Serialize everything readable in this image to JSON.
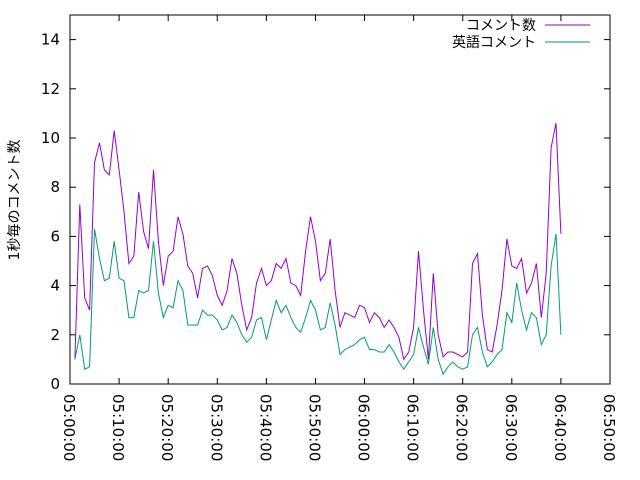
{
  "chart_data": {
    "type": "line",
    "ylabel": "1秒毎のコメント数",
    "xlabel": "",
    "title": "",
    "ylim": [
      0,
      15
    ],
    "yticks": [
      0,
      2,
      4,
      6,
      8,
      10,
      12,
      14
    ],
    "xlim": [
      "05:00:00",
      "06:50:00"
    ],
    "xticks": [
      "05:00:00",
      "05:10:00",
      "05:20:00",
      "05:30:00",
      "05:40:00",
      "05:50:00",
      "06:00:00",
      "06:10:00",
      "06:20:00",
      "06:30:00",
      "06:40:00",
      "06:50:00"
    ],
    "legend_position": "top-right",
    "grid": false,
    "series": [
      {
        "name": "コメント数",
        "color": "#9400d3",
        "points": [
          [
            "05:01:00",
            1.0
          ],
          [
            "05:02:00",
            7.3
          ],
          [
            "05:03:00",
            3.5
          ],
          [
            "05:04:00",
            3.0
          ],
          [
            "05:05:00",
            9.0
          ],
          [
            "05:06:00",
            9.8
          ],
          [
            "05:07:00",
            8.7
          ],
          [
            "05:08:00",
            8.5
          ],
          [
            "05:09:00",
            10.3
          ],
          [
            "05:10:00",
            8.7
          ],
          [
            "05:11:00",
            7.0
          ],
          [
            "05:12:00",
            4.9
          ],
          [
            "05:13:00",
            5.2
          ],
          [
            "05:14:00",
            7.8
          ],
          [
            "05:15:00",
            6.2
          ],
          [
            "05:16:00",
            5.5
          ],
          [
            "05:17:00",
            8.7
          ],
          [
            "05:18:00",
            5.8
          ],
          [
            "05:19:00",
            4.0
          ],
          [
            "05:20:00",
            5.2
          ],
          [
            "05:21:00",
            5.4
          ],
          [
            "05:22:00",
            6.8
          ],
          [
            "05:23:00",
            6.1
          ],
          [
            "05:24:00",
            4.8
          ],
          [
            "05:25:00",
            4.5
          ],
          [
            "05:26:00",
            3.5
          ],
          [
            "05:27:00",
            4.7
          ],
          [
            "05:28:00",
            4.8
          ],
          [
            "05:29:00",
            4.4
          ],
          [
            "05:30:00",
            3.6
          ],
          [
            "05:31:00",
            3.2
          ],
          [
            "05:32:00",
            3.8
          ],
          [
            "05:33:00",
            5.1
          ],
          [
            "05:34:00",
            4.5
          ],
          [
            "05:35:00",
            3.2
          ],
          [
            "05:36:00",
            2.2
          ],
          [
            "05:37:00",
            2.7
          ],
          [
            "05:38:00",
            4.1
          ],
          [
            "05:39:00",
            4.7
          ],
          [
            "05:40:00",
            4.0
          ],
          [
            "05:41:00",
            4.2
          ],
          [
            "05:42:00",
            4.9
          ],
          [
            "05:43:00",
            4.7
          ],
          [
            "05:44:00",
            5.1
          ],
          [
            "05:45:00",
            4.1
          ],
          [
            "05:46:00",
            4.0
          ],
          [
            "05:47:00",
            3.6
          ],
          [
            "05:48:00",
            5.4
          ],
          [
            "05:49:00",
            6.8
          ],
          [
            "05:50:00",
            5.8
          ],
          [
            "05:51:00",
            4.2
          ],
          [
            "05:52:00",
            4.5
          ],
          [
            "05:53:00",
            5.9
          ],
          [
            "05:54:00",
            3.8
          ],
          [
            "05:55:00",
            2.3
          ],
          [
            "05:56:00",
            2.9
          ],
          [
            "05:57:00",
            2.8
          ],
          [
            "05:58:00",
            2.7
          ],
          [
            "05:59:00",
            3.2
          ],
          [
            "06:00:00",
            3.1
          ],
          [
            "06:01:00",
            2.5
          ],
          [
            "06:02:00",
            2.9
          ],
          [
            "06:03:00",
            2.7
          ],
          [
            "06:04:00",
            2.3
          ],
          [
            "06:05:00",
            2.6
          ],
          [
            "06:06:00",
            2.3
          ],
          [
            "06:07:00",
            1.9
          ],
          [
            "06:08:00",
            1.0
          ],
          [
            "06:09:00",
            1.3
          ],
          [
            "06:10:00",
            2.3
          ],
          [
            "06:11:00",
            5.4
          ],
          [
            "06:12:00",
            3.0
          ],
          [
            "06:13:00",
            1.0
          ],
          [
            "06:14:00",
            4.5
          ],
          [
            "06:15:00",
            2.0
          ],
          [
            "06:16:00",
            1.1
          ],
          [
            "06:17:00",
            1.3
          ],
          [
            "06:18:00",
            1.3
          ],
          [
            "06:19:00",
            1.2
          ],
          [
            "06:20:00",
            1.1
          ],
          [
            "06:21:00",
            1.3
          ],
          [
            "06:22:00",
            4.9
          ],
          [
            "06:23:00",
            5.3
          ],
          [
            "06:24:00",
            2.8
          ],
          [
            "06:25:00",
            1.4
          ],
          [
            "06:26:00",
            1.3
          ],
          [
            "06:27:00",
            2.4
          ],
          [
            "06:28:00",
            3.8
          ],
          [
            "06:29:00",
            5.9
          ],
          [
            "06:30:00",
            4.8
          ],
          [
            "06:31:00",
            4.7
          ],
          [
            "06:32:00",
            5.1
          ],
          [
            "06:33:00",
            3.7
          ],
          [
            "06:34:00",
            4.1
          ],
          [
            "06:35:00",
            4.9
          ],
          [
            "06:36:00",
            2.7
          ],
          [
            "06:37:00",
            4.5
          ],
          [
            "06:38:00",
            9.6
          ],
          [
            "06:39:00",
            10.6
          ],
          [
            "06:40:00",
            6.1
          ]
        ]
      },
      {
        "name": "英語コメント",
        "color": "#009e73",
        "points": [
          [
            "05:01:00",
            1.0
          ],
          [
            "05:02:00",
            2.0
          ],
          [
            "05:03:00",
            0.6
          ],
          [
            "05:04:00",
            0.7
          ],
          [
            "05:05:00",
            6.3
          ],
          [
            "05:06:00",
            5.1
          ],
          [
            "05:07:00",
            4.2
          ],
          [
            "05:08:00",
            4.3
          ],
          [
            "05:09:00",
            5.8
          ],
          [
            "05:10:00",
            4.3
          ],
          [
            "05:11:00",
            4.2
          ],
          [
            "05:12:00",
            2.7
          ],
          [
            "05:13:00",
            2.7
          ],
          [
            "05:14:00",
            3.8
          ],
          [
            "05:15:00",
            3.7
          ],
          [
            "05:16:00",
            3.8
          ],
          [
            "05:17:00",
            5.8
          ],
          [
            "05:18:00",
            3.7
          ],
          [
            "05:19:00",
            2.7
          ],
          [
            "05:20:00",
            3.2
          ],
          [
            "05:21:00",
            3.1
          ],
          [
            "05:22:00",
            4.2
          ],
          [
            "05:23:00",
            3.8
          ],
          [
            "05:24:00",
            2.4
          ],
          [
            "05:25:00",
            2.4
          ],
          [
            "05:26:00",
            2.4
          ],
          [
            "05:27:00",
            3.0
          ],
          [
            "05:28:00",
            2.8
          ],
          [
            "05:29:00",
            2.8
          ],
          [
            "05:30:00",
            2.6
          ],
          [
            "05:31:00",
            2.2
          ],
          [
            "05:32:00",
            2.3
          ],
          [
            "05:33:00",
            2.8
          ],
          [
            "05:34:00",
            2.5
          ],
          [
            "05:35:00",
            2.0
          ],
          [
            "05:36:00",
            1.7
          ],
          [
            "05:37:00",
            1.9
          ],
          [
            "05:38:00",
            2.6
          ],
          [
            "05:39:00",
            2.7
          ],
          [
            "05:40:00",
            1.8
          ],
          [
            "05:41:00",
            2.6
          ],
          [
            "05:42:00",
            3.4
          ],
          [
            "05:43:00",
            2.9
          ],
          [
            "05:44:00",
            3.2
          ],
          [
            "05:45:00",
            2.7
          ],
          [
            "05:46:00",
            2.3
          ],
          [
            "05:47:00",
            2.1
          ],
          [
            "05:48:00",
            2.7
          ],
          [
            "05:49:00",
            3.4
          ],
          [
            "05:50:00",
            3.0
          ],
          [
            "05:51:00",
            2.2
          ],
          [
            "05:52:00",
            2.3
          ],
          [
            "05:53:00",
            3.3
          ],
          [
            "05:54:00",
            2.4
          ],
          [
            "05:55:00",
            1.2
          ],
          [
            "05:56:00",
            1.4
          ],
          [
            "05:57:00",
            1.5
          ],
          [
            "05:58:00",
            1.6
          ],
          [
            "05:59:00",
            1.8
          ],
          [
            "06:00:00",
            1.9
          ],
          [
            "06:01:00",
            1.4
          ],
          [
            "06:02:00",
            1.4
          ],
          [
            "06:03:00",
            1.3
          ],
          [
            "06:04:00",
            1.3
          ],
          [
            "06:05:00",
            1.6
          ],
          [
            "06:06:00",
            1.3
          ],
          [
            "06:07:00",
            0.9
          ],
          [
            "06:08:00",
            0.6
          ],
          [
            "06:09:00",
            0.9
          ],
          [
            "06:10:00",
            1.2
          ],
          [
            "06:11:00",
            2.3
          ],
          [
            "06:12:00",
            1.5
          ],
          [
            "06:13:00",
            0.8
          ],
          [
            "06:14:00",
            2.3
          ],
          [
            "06:15:00",
            1.0
          ],
          [
            "06:16:00",
            0.4
          ],
          [
            "06:17:00",
            0.7
          ],
          [
            "06:18:00",
            0.9
          ],
          [
            "06:19:00",
            0.7
          ],
          [
            "06:20:00",
            0.6
          ],
          [
            "06:21:00",
            0.7
          ],
          [
            "06:22:00",
            2.0
          ],
          [
            "06:23:00",
            2.3
          ],
          [
            "06:24:00",
            1.3
          ],
          [
            "06:25:00",
            0.7
          ],
          [
            "06:26:00",
            0.9
          ],
          [
            "06:27:00",
            1.2
          ],
          [
            "06:28:00",
            1.4
          ],
          [
            "06:29:00",
            2.9
          ],
          [
            "06:30:00",
            2.5
          ],
          [
            "06:31:00",
            4.1
          ],
          [
            "06:32:00",
            3.0
          ],
          [
            "06:33:00",
            2.2
          ],
          [
            "06:34:00",
            2.9
          ],
          [
            "06:35:00",
            2.7
          ],
          [
            "06:36:00",
            1.6
          ],
          [
            "06:37:00",
            2.0
          ],
          [
            "06:38:00",
            4.8
          ],
          [
            "06:39:00",
            6.1
          ],
          [
            "06:40:00",
            2.0
          ]
        ]
      }
    ]
  }
}
